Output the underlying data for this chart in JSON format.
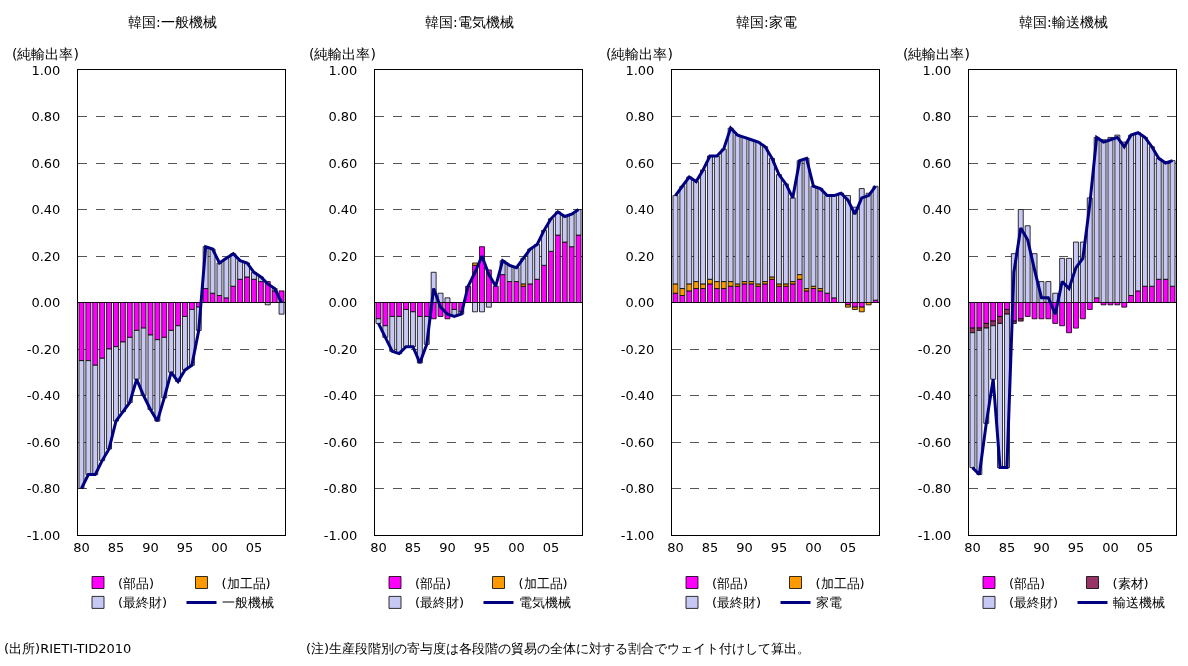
{
  "chart_data": [
    {
      "type": "bar",
      "title": "韓国:一般機械",
      "ylabel": "(純輸出率)",
      "stacked": true,
      "x": [
        1980,
        1981,
        1982,
        1983,
        1984,
        1985,
        1986,
        1987,
        1988,
        1989,
        1990,
        1991,
        1992,
        1993,
        1994,
        1995,
        1996,
        1997,
        1998,
        1999,
        2000,
        2001,
        2002,
        2003,
        2004,
        2005,
        2006,
        2007,
        2008,
        2009
      ],
      "series": [
        {
          "name": "(部品)",
          "color": "#ff00ff",
          "values": [
            -0.25,
            -0.25,
            -0.27,
            -0.24,
            -0.2,
            -0.19,
            -0.17,
            -0.15,
            -0.12,
            -0.11,
            -0.14,
            -0.16,
            -0.15,
            -0.12,
            -0.1,
            -0.06,
            -0.03,
            -0.02,
            0.06,
            0.04,
            0.03,
            0.02,
            0.07,
            0.1,
            0.11,
            0.1,
            0.09,
            0.09,
            0.05,
            0.05
          ]
        },
        {
          "name": "(加工品)",
          "color": "#ff9900",
          "values": [
            null,
            null,
            null,
            null,
            null,
            null,
            null,
            null,
            null,
            null,
            null,
            null,
            null,
            null,
            null,
            null,
            null,
            null,
            null,
            null,
            null,
            null,
            null,
            null,
            null,
            null,
            null,
            null,
            null,
            null
          ]
        },
        {
          "name": "(最終財)",
          "color": "#c8c8f5",
          "values": [
            -0.55,
            -0.49,
            -0.47,
            -0.44,
            -0.43,
            -0.32,
            -0.3,
            -0.28,
            -0.21,
            -0.29,
            -0.32,
            -0.35,
            -0.26,
            -0.18,
            -0.24,
            -0.23,
            -0.24,
            -0.1,
            0.18,
            0.19,
            0.14,
            0.17,
            0.14,
            0.08,
            0.06,
            0.03,
            0.02,
            -0.01,
            0.01,
            -0.05
          ]
        },
        {
          "name": "一般機械",
          "type": "line",
          "color": "#000080",
          "values": [
            -0.8,
            -0.74,
            -0.74,
            -0.68,
            -0.63,
            -0.51,
            -0.47,
            -0.43,
            -0.33,
            -0.4,
            -0.46,
            -0.51,
            -0.41,
            -0.3,
            -0.34,
            -0.29,
            -0.27,
            -0.12,
            0.24,
            0.23,
            0.17,
            0.19,
            0.21,
            0.18,
            0.17,
            0.13,
            0.11,
            0.08,
            0.06,
            0.0
          ]
        }
      ],
      "xlim": [
        1979.5,
        2009.5
      ],
      "xticks": [
        {
          "value": 1980,
          "label": "80"
        },
        {
          "value": 1985,
          "label": "85"
        },
        {
          "value": 1990,
          "label": "90"
        },
        {
          "value": 1995,
          "label": "95"
        },
        {
          "value": 2000,
          "label": "00"
        },
        {
          "value": 2005,
          "label": "05"
        }
      ],
      "ylim": [
        -1,
        1
      ],
      "yticks": [
        {
          "value": -1,
          "label": "-1.00"
        },
        {
          "value": -0.8,
          "label": "-0.80"
        },
        {
          "value": -0.6,
          "label": "-0.60"
        },
        {
          "value": -0.4,
          "label": "-0.40"
        },
        {
          "value": -0.2,
          "label": "-0.20"
        },
        {
          "value": 0,
          "label": "0.00"
        },
        {
          "value": 0.2,
          "label": "0.20"
        },
        {
          "value": 0.4,
          "label": "0.40"
        },
        {
          "value": 0.6,
          "label": "0.60"
        },
        {
          "value": 0.8,
          "label": "0.80"
        },
        {
          "value": 1,
          "label": "1.00"
        }
      ],
      "grid": "y",
      "legend": "bottom",
      "marker": "none",
      "line_style": "solid",
      "annotations": [
        "(出所)RIETI-TID2010",
        "(注)生産段階別の寄与度は各段階の貿易の全体に対する割合でウェイト付けして算出。"
      ]
    },
    {
      "type": "bar",
      "title": "韓国:電気機械",
      "ylabel": "(純輸出率)",
      "stacked": true,
      "x": [
        1980,
        1981,
        1982,
        1983,
        1984,
        1985,
        1986,
        1987,
        1988,
        1989,
        1990,
        1991,
        1992,
        1993,
        1994,
        1995,
        1996,
        1997,
        1998,
        1999,
        2000,
        2001,
        2002,
        2003,
        2004,
        2005,
        2006,
        2007,
        2008,
        2009
      ],
      "series": [
        {
          "name": "(部品)",
          "color": "#ff00ff",
          "values": [
            -0.07,
            -0.1,
            -0.06,
            -0.06,
            -0.03,
            -0.04,
            -0.06,
            -0.06,
            -0.07,
            -0.06,
            -0.07,
            -0.03,
            -0.04,
            0.07,
            0.16,
            0.24,
            0.14,
            0.07,
            0.12,
            0.09,
            0.09,
            0.07,
            0.08,
            0.1,
            0.16,
            0.22,
            0.29,
            0.26,
            0.24,
            0.29
          ]
        },
        {
          "name": "(加工品)",
          "color": "#ff9900",
          "values": [
            null,
            null,
            null,
            null,
            null,
            null,
            null,
            null,
            null,
            null,
            null,
            null,
            null,
            null,
            0.01,
            null,
            null,
            null,
            null,
            null,
            null,
            0.01,
            null,
            null,
            null,
            null,
            null,
            null,
            null,
            null
          ]
        },
        {
          "name": "(最終財)",
          "color": "#c8c8f5",
          "values": [
            -0.02,
            -0.05,
            -0.15,
            -0.16,
            -0.16,
            -0.15,
            -0.2,
            -0.12,
            0.13,
            0.04,
            0.02,
            -0.03,
            -0.01,
            null,
            -0.04,
            -0.04,
            -0.02,
            null,
            0.06,
            0.07,
            0.06,
            0.11,
            0.15,
            0.15,
            0.15,
            0.14,
            0.1,
            0.11,
            0.14,
            0.11
          ]
        },
        {
          "name": "電気機械",
          "type": "line",
          "color": "#000080",
          "values": [
            -0.09,
            -0.15,
            -0.21,
            -0.22,
            -0.19,
            -0.19,
            -0.26,
            -0.18,
            0.06,
            -0.02,
            -0.05,
            -0.06,
            -0.05,
            0.07,
            0.13,
            0.2,
            0.12,
            0.07,
            0.18,
            0.16,
            0.15,
            0.19,
            0.23,
            0.25,
            0.31,
            0.36,
            0.39,
            0.37,
            0.38,
            0.4
          ]
        }
      ],
      "xlim": [
        1979.5,
        2009.5
      ],
      "xticks": [
        {
          "value": 1980,
          "label": "80"
        },
        {
          "value": 1985,
          "label": "85"
        },
        {
          "value": 1990,
          "label": "90"
        },
        {
          "value": 1995,
          "label": "95"
        },
        {
          "value": 2000,
          "label": "00"
        },
        {
          "value": 2005,
          "label": "05"
        }
      ],
      "ylim": [
        -1,
        1
      ],
      "yticks": [
        {
          "value": -1,
          "label": "-1.00"
        },
        {
          "value": -0.8,
          "label": "-0.80"
        },
        {
          "value": -0.6,
          "label": "-0.60"
        },
        {
          "value": -0.4,
          "label": "-0.40"
        },
        {
          "value": -0.2,
          "label": "-0.20"
        },
        {
          "value": 0,
          "label": "0.00"
        },
        {
          "value": 0.2,
          "label": "0.20"
        },
        {
          "value": 0.4,
          "label": "0.40"
        },
        {
          "value": 0.6,
          "label": "0.60"
        },
        {
          "value": 0.8,
          "label": "0.80"
        },
        {
          "value": 1,
          "label": "1.00"
        }
      ],
      "grid": "y",
      "legend": "bottom",
      "marker": "none",
      "line_style": "solid"
    },
    {
      "type": "bar",
      "title": "韓国:家電",
      "ylabel": "(純輸出率)",
      "stacked": true,
      "x": [
        1980,
        1981,
        1982,
        1983,
        1984,
        1985,
        1986,
        1987,
        1988,
        1989,
        1990,
        1991,
        1992,
        1993,
        1994,
        1995,
        1996,
        1997,
        1998,
        1999,
        2000,
        2001,
        2002,
        2003,
        2004,
        2005,
        2006,
        2007,
        2008,
        2009
      ],
      "series": [
        {
          "name": "(部品)",
          "color": "#ff00ff",
          "values": [
            0.04,
            0.03,
            0.05,
            0.06,
            0.06,
            0.08,
            0.06,
            0.06,
            0.07,
            0.07,
            0.08,
            0.08,
            0.07,
            0.08,
            0.1,
            0.07,
            0.07,
            0.08,
            0.1,
            0.05,
            0.06,
            0.05,
            0.04,
            0.02,
            null,
            -0.01,
            -0.02,
            -0.02,
            null,
            0.01
          ]
        },
        {
          "name": "(加工品)",
          "color": "#ff9900",
          "values": [
            0.04,
            0.03,
            0.03,
            0.03,
            0.02,
            0.02,
            0.03,
            0.03,
            0.02,
            0.01,
            0.01,
            0.01,
            0.01,
            0.01,
            0.01,
            0.01,
            0.01,
            0.01,
            0.02,
            0.01,
            0.01,
            0.01,
            null,
            null,
            null,
            -0.01,
            -0.01,
            -0.02,
            -0.01,
            null
          ]
        },
        {
          "name": "(最終財)",
          "color": "#c8c8f5",
          "values": [
            0.38,
            0.44,
            0.46,
            0.43,
            0.49,
            0.53,
            0.54,
            0.57,
            0.66,
            0.64,
            0.62,
            0.61,
            0.61,
            0.58,
            0.51,
            0.47,
            0.43,
            0.36,
            0.49,
            0.56,
            0.43,
            0.43,
            0.42,
            0.44,
            0.47,
            0.46,
            0.41,
            0.49,
            0.47,
            0.49
          ]
        },
        {
          "name": "家電",
          "type": "line",
          "color": "#000080",
          "values": [
            0.46,
            0.5,
            0.54,
            0.52,
            0.57,
            0.63,
            0.63,
            0.66,
            0.75,
            0.72,
            0.71,
            0.7,
            0.69,
            0.67,
            0.62,
            0.55,
            0.51,
            0.45,
            0.61,
            0.62,
            0.5,
            0.49,
            0.46,
            0.46,
            0.47,
            0.44,
            0.38,
            0.45,
            0.46,
            0.5
          ]
        }
      ],
      "xlim": [
        1979.5,
        2009.5
      ],
      "xticks": [
        {
          "value": 1980,
          "label": "80"
        },
        {
          "value": 1985,
          "label": "85"
        },
        {
          "value": 1990,
          "label": "90"
        },
        {
          "value": 1995,
          "label": "95"
        },
        {
          "value": 2000,
          "label": "00"
        },
        {
          "value": 2005,
          "label": "05"
        }
      ],
      "ylim": [
        -1,
        1
      ],
      "yticks": [
        {
          "value": -1,
          "label": "-1.00"
        },
        {
          "value": -0.8,
          "label": "-0.80"
        },
        {
          "value": -0.6,
          "label": "-0.60"
        },
        {
          "value": -0.4,
          "label": "-0.40"
        },
        {
          "value": -0.2,
          "label": "-0.20"
        },
        {
          "value": 0,
          "label": "0.00"
        },
        {
          "value": 0.2,
          "label": "0.20"
        },
        {
          "value": 0.4,
          "label": "0.40"
        },
        {
          "value": 0.6,
          "label": "0.60"
        },
        {
          "value": 0.8,
          "label": "0.80"
        },
        {
          "value": 1,
          "label": "1.00"
        }
      ],
      "grid": "y",
      "legend": "bottom",
      "marker": "none",
      "line_style": "solid"
    },
    {
      "type": "bar",
      "title": "韓国:輸送機械",
      "ylabel": "(純輸出率)",
      "stacked": true,
      "x": [
        1980,
        1981,
        1982,
        1983,
        1984,
        1985,
        1986,
        1987,
        1988,
        1989,
        1990,
        1991,
        1992,
        1993,
        1994,
        1995,
        1996,
        1997,
        1998,
        1999,
        2000,
        2001,
        2002,
        2003,
        2004,
        2005,
        2006,
        2007,
        2008,
        2009
      ],
      "series": [
        {
          "name": "(部品)",
          "color": "#ff00ff",
          "values": [
            -0.11,
            -0.11,
            -0.09,
            -0.08,
            -0.06,
            -0.03,
            -0.08,
            -0.07,
            -0.06,
            -0.07,
            -0.07,
            -0.07,
            -0.09,
            -0.1,
            -0.13,
            -0.11,
            -0.07,
            -0.03,
            0.02,
            -0.01,
            -0.01,
            -0.01,
            -0.02,
            0.03,
            0.05,
            0.07,
            0.07,
            0.1,
            0.1,
            0.07
          ]
        },
        {
          "name": "(素材)",
          "color": "#993366",
          "values": [
            -0.02,
            -0.01,
            -0.02,
            -0.02,
            -0.03,
            -0.02,
            -0.01,
            -0.01,
            null,
            null,
            null,
            null,
            null,
            null,
            null,
            null,
            null,
            null,
            null,
            null,
            null,
            null,
            null,
            null,
            null,
            null,
            null,
            null,
            null,
            null
          ]
        },
        {
          "name": "(最終財)",
          "color": "#c8c8f5",
          "values": [
            -0.58,
            -0.62,
            -0.41,
            -0.23,
            -0.62,
            -0.66,
            0.21,
            0.4,
            0.33,
            0.21,
            0.09,
            0.09,
            0.04,
            0.19,
            0.19,
            0.26,
            0.26,
            0.45,
            0.69,
            0.7,
            0.71,
            0.72,
            0.69,
            0.69,
            0.68,
            0.64,
            0.6,
            0.52,
            0.5,
            0.54
          ]
        },
        {
          "name": "輸送機械",
          "type": "line",
          "color": "#000080",
          "values": [
            -0.71,
            -0.74,
            -0.52,
            -0.33,
            -0.71,
            -0.71,
            0.13,
            0.32,
            0.27,
            0.14,
            0.02,
            0.02,
            -0.05,
            0.09,
            0.06,
            0.15,
            0.19,
            0.42,
            0.71,
            0.69,
            0.7,
            0.71,
            0.67,
            0.72,
            0.73,
            0.71,
            0.67,
            0.62,
            0.6,
            0.61
          ]
        }
      ],
      "xlim": [
        1979.5,
        2009.5
      ],
      "xticks": [
        {
          "value": 1980,
          "label": "80"
        },
        {
          "value": 1985,
          "label": "85"
        },
        {
          "value": 1990,
          "label": "90"
        },
        {
          "value": 1995,
          "label": "95"
        },
        {
          "value": 2000,
          "label": "00"
        },
        {
          "value": 2005,
          "label": "05"
        }
      ],
      "ylim": [
        -1,
        1
      ],
      "yticks": [
        {
          "value": -1,
          "label": "-1.00"
        },
        {
          "value": -0.8,
          "label": "-0.80"
        },
        {
          "value": -0.6,
          "label": "-0.60"
        },
        {
          "value": -0.4,
          "label": "-0.40"
        },
        {
          "value": -0.2,
          "label": "-0.20"
        },
        {
          "value": 0,
          "label": "0.00"
        },
        {
          "value": 0.2,
          "label": "0.20"
        },
        {
          "value": 0.4,
          "label": "0.40"
        },
        {
          "value": 0.6,
          "label": "0.60"
        },
        {
          "value": 0.8,
          "label": "0.80"
        },
        {
          "value": 1,
          "label": "1.00"
        }
      ],
      "grid": "y",
      "legend": "bottom",
      "marker": "none",
      "line_style": "solid"
    }
  ]
}
